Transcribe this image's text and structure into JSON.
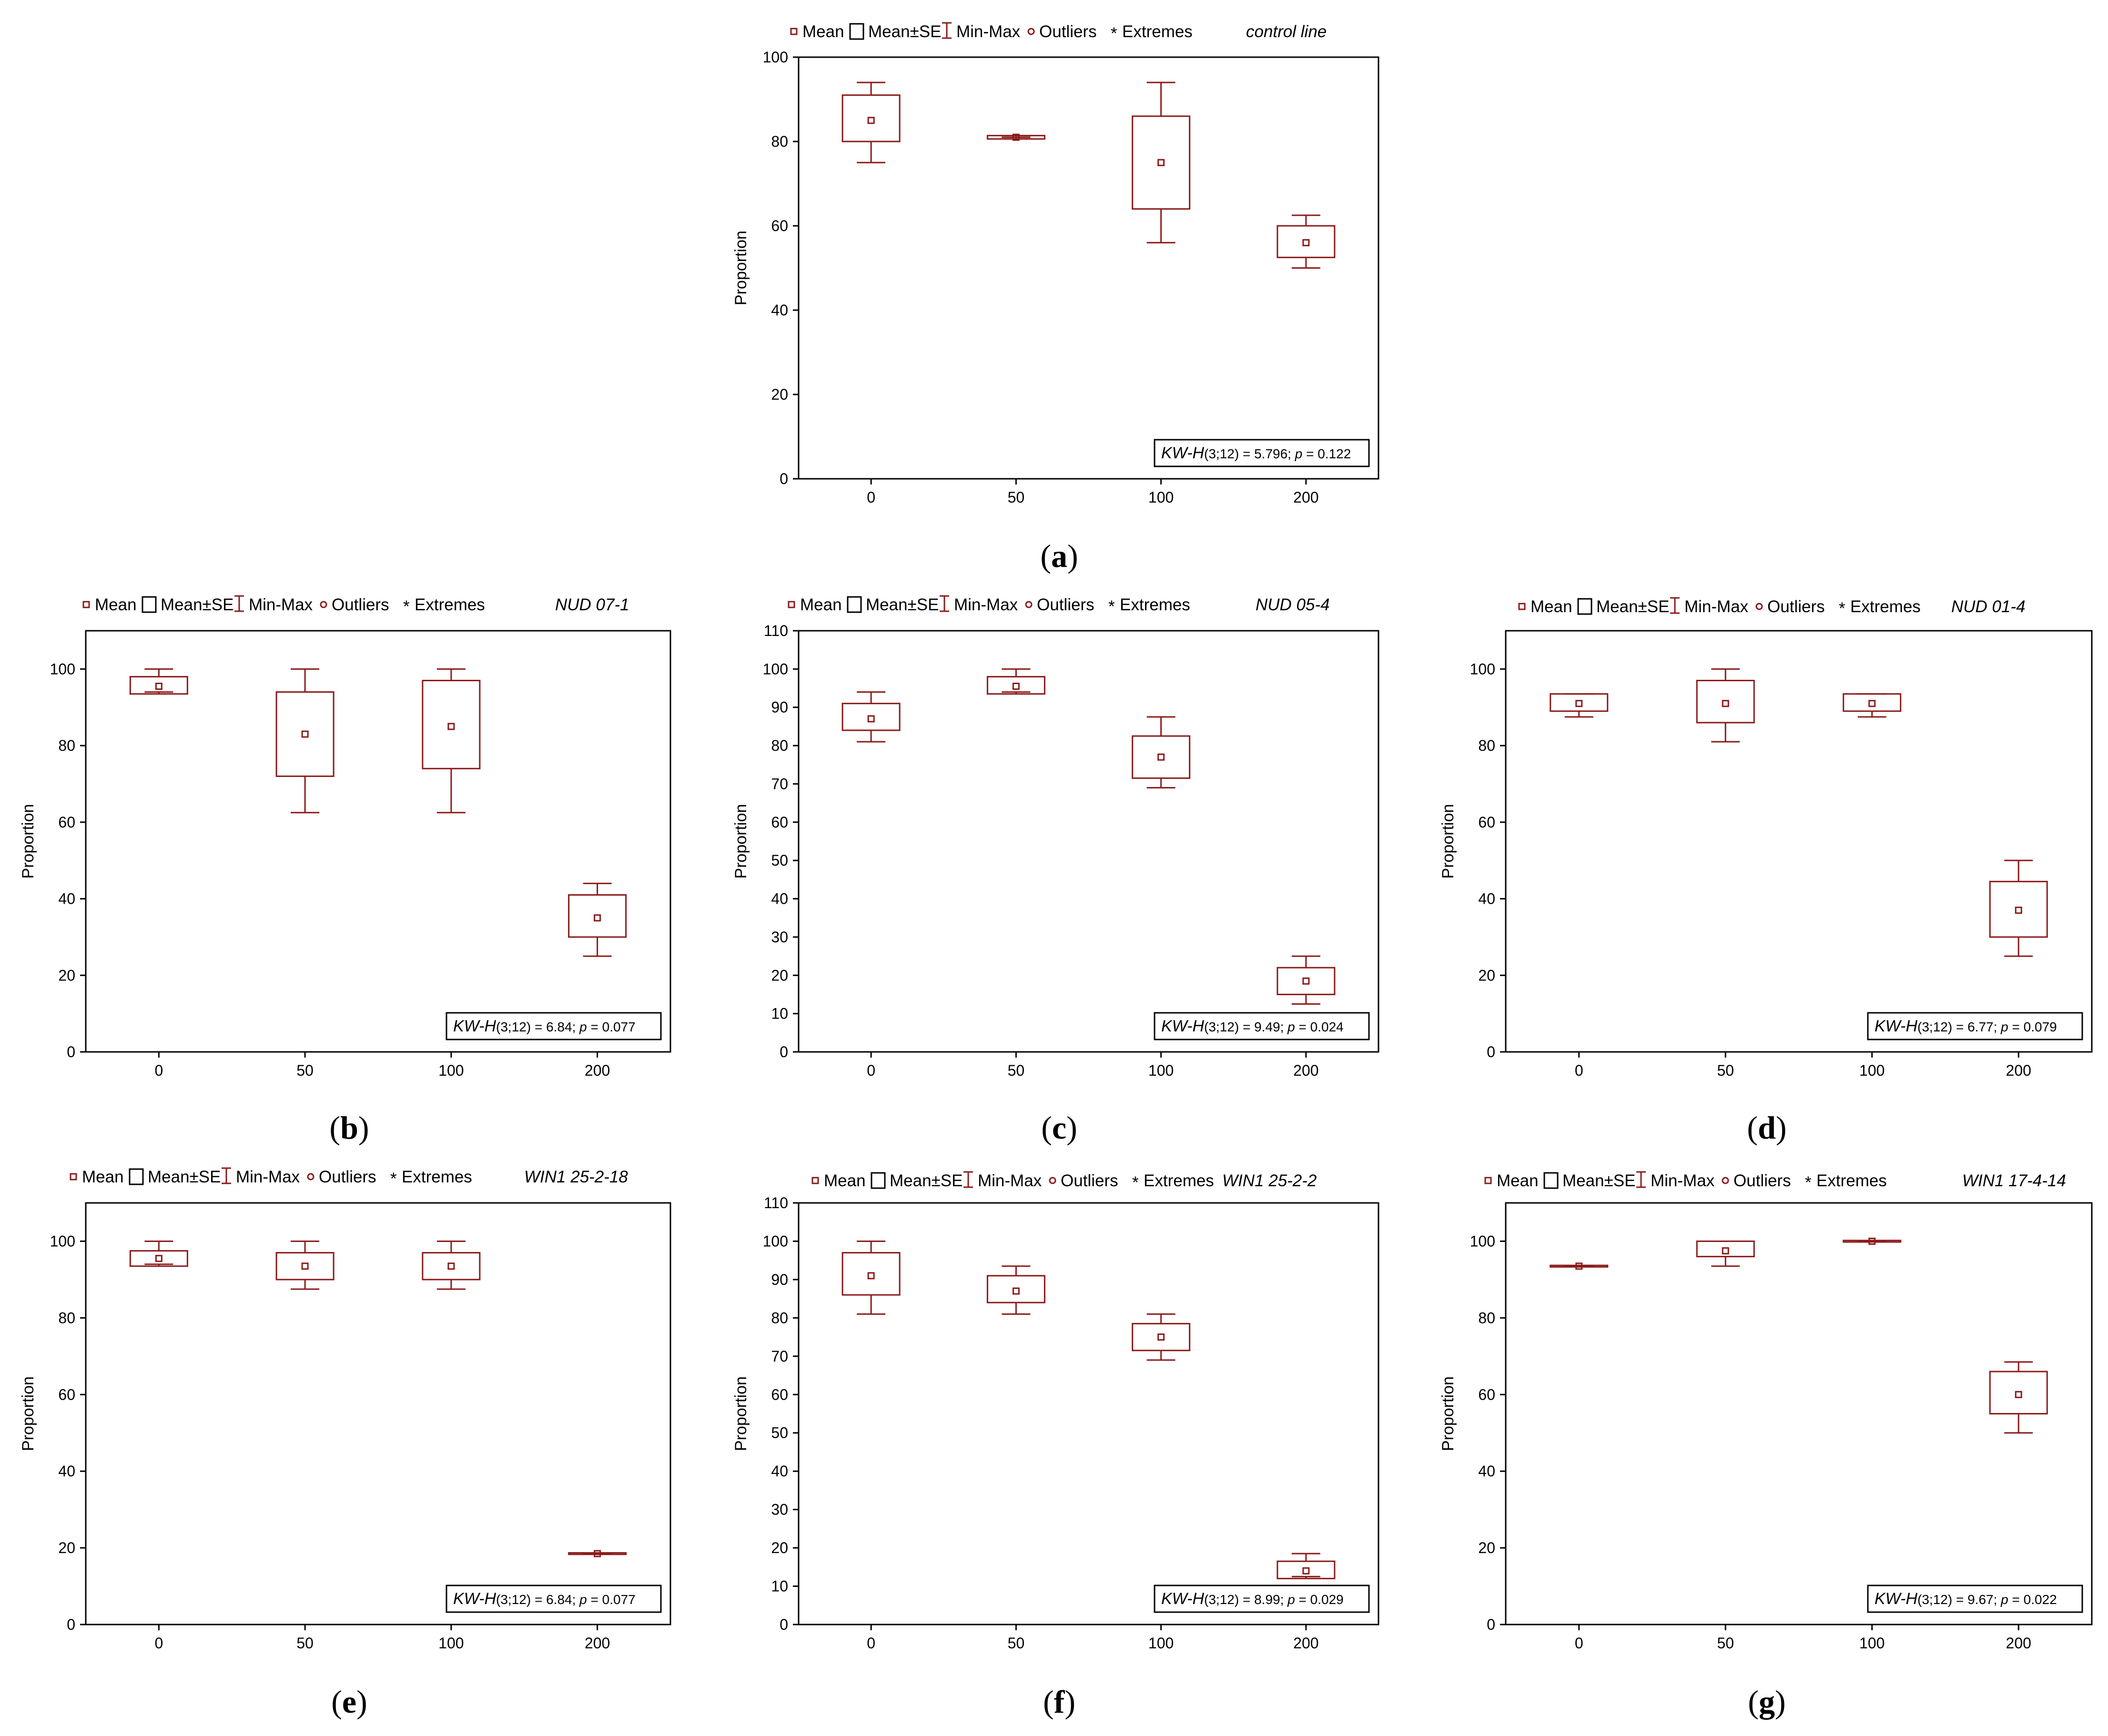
{
  "legend": {
    "mean": "Mean",
    "mean_se": "Mean±SE",
    "min_max": "Min-Max",
    "outliers": "Outliers",
    "extremes": "Extremes"
  },
  "colors": {
    "accent": "#8b1a1a",
    "axis": "#000000"
  },
  "chart_data": [
    {
      "type": "box",
      "id": "a",
      "panel_label": "a",
      "title": "control line",
      "ylabel": "Proportion",
      "categories": [
        "0",
        "50",
        "100",
        "200"
      ],
      "ylim": [
        0,
        100
      ],
      "yticks": [
        0,
        20,
        40,
        60,
        80,
        100
      ],
      "mean": [
        85,
        81,
        75,
        56
      ],
      "se_low": [
        80,
        80.6,
        64,
        52.5
      ],
      "se_high": [
        91,
        81.4,
        86,
        60
      ],
      "min": [
        75,
        81,
        56,
        50
      ],
      "max": [
        94,
        81,
        94,
        62.5
      ],
      "stat": {
        "name": "KW-H",
        "df": "(3;12)",
        "value": "= 5.796;",
        "p": "= 0.122"
      }
    },
    {
      "type": "box",
      "id": "b",
      "panel_label": "b",
      "title": "NUD 07-1",
      "ylabel": "Proportion",
      "categories": [
        "0",
        "50",
        "100",
        "200"
      ],
      "ylim": [
        0,
        110
      ],
      "yticks": [
        0,
        20,
        40,
        60,
        80,
        100
      ],
      "mean": [
        95.5,
        83,
        85,
        35
      ],
      "se_low": [
        93.5,
        72,
        74,
        30
      ],
      "se_high": [
        98,
        94,
        97,
        41
      ],
      "min": [
        94,
        62.5,
        62.5,
        25
      ],
      "max": [
        100,
        100,
        100,
        44
      ],
      "stat": {
        "name": "KW-H",
        "df": "(3;12)",
        "value": "= 6.84;",
        "p": "= 0.077"
      }
    },
    {
      "type": "box",
      "id": "c",
      "panel_label": "c",
      "title": "NUD 05-4",
      "ylabel": "Proportion",
      "categories": [
        "0",
        "50",
        "100",
        "200"
      ],
      "ylim": [
        0,
        110
      ],
      "yticks": [
        0,
        10,
        20,
        30,
        40,
        50,
        60,
        70,
        80,
        90,
        100,
        110
      ],
      "mean": [
        87,
        95.5,
        77,
        18.5
      ],
      "se_low": [
        84,
        93.5,
        71.5,
        15
      ],
      "se_high": [
        91,
        98,
        82.5,
        22
      ],
      "min": [
        81,
        94,
        69,
        12.5
      ],
      "max": [
        94,
        100,
        87.5,
        25
      ],
      "stat": {
        "name": "KW-H",
        "df": "(3;12)",
        "value": "= 9.49;",
        "p": "= 0.024"
      }
    },
    {
      "type": "box",
      "id": "d",
      "panel_label": "d",
      "title": "NUD 01-4",
      "ylabel": "Proportion",
      "categories": [
        "0",
        "50",
        "100",
        "200"
      ],
      "ylim": [
        0,
        110
      ],
      "yticks": [
        0,
        20,
        40,
        60,
        80,
        100
      ],
      "mean": [
        91,
        91,
        91,
        37
      ],
      "se_low": [
        89,
        86,
        89,
        30
      ],
      "se_high": [
        93.5,
        97,
        93.5,
        44.5
      ],
      "min": [
        87.5,
        81,
        87.5,
        25
      ],
      "max": [
        93.5,
        100,
        93.5,
        50
      ],
      "stat": {
        "name": "KW-H",
        "df": "(3;12)",
        "value": "= 6.77;",
        "p": "= 0.079"
      }
    },
    {
      "type": "box",
      "id": "e",
      "panel_label": "e",
      "title": "WIN1 25-2-18",
      "ylabel": "Proportion",
      "categories": [
        "0",
        "50",
        "100",
        "200"
      ],
      "ylim": [
        0,
        110
      ],
      "yticks": [
        0,
        20,
        40,
        60,
        80,
        100
      ],
      "mean": [
        95.5,
        93.5,
        93.5,
        18.5
      ],
      "se_low": [
        93.5,
        90,
        90,
        18.3
      ],
      "se_high": [
        97.5,
        97,
        97,
        18.7
      ],
      "min": [
        94,
        87.5,
        87.5,
        18.5
      ],
      "max": [
        100,
        100,
        100,
        18.5
      ],
      "stat": {
        "name": "KW-H",
        "df": "(3;12)",
        "value": "= 6.84;",
        "p": "= 0.077"
      }
    },
    {
      "type": "box",
      "id": "f",
      "panel_label": "f",
      "title": "WIN1 25-2-2",
      "ylabel": "Proportion",
      "categories": [
        "0",
        "50",
        "100",
        "200"
      ],
      "ylim": [
        0,
        110
      ],
      "yticks": [
        0,
        10,
        20,
        30,
        40,
        50,
        60,
        70,
        80,
        90,
        100,
        110
      ],
      "mean": [
        91,
        87,
        75,
        14
      ],
      "se_low": [
        86,
        84,
        71.5,
        12
      ],
      "se_high": [
        97,
        91,
        78.5,
        16.5
      ],
      "min": [
        81,
        81,
        69,
        12.5
      ],
      "max": [
        100,
        93.5,
        81,
        18.5
      ],
      "stat": {
        "name": "KW-H",
        "df": "(3;12)",
        "value": "= 8.99;",
        "p": "= 0.029"
      }
    },
    {
      "type": "box",
      "id": "g",
      "panel_label": "g",
      "title": "WIN1 17-4-14",
      "ylabel": "Proportion",
      "categories": [
        "0",
        "50",
        "100",
        "200"
      ],
      "ylim": [
        0,
        110
      ],
      "yticks": [
        0,
        20,
        40,
        60,
        80,
        100
      ],
      "mean": [
        93.5,
        97.5,
        100,
        60
      ],
      "se_low": [
        93.3,
        96,
        99.8,
        55
      ],
      "se_high": [
        93.7,
        100,
        100.2,
        66
      ],
      "min": [
        93.5,
        93.5,
        100,
        50
      ],
      "max": [
        93.5,
        100,
        100,
        68.5
      ],
      "stat": {
        "name": "KW-H",
        "df": "(3;12)",
        "value": "= 9.67;",
        "p": "= 0.022"
      }
    }
  ]
}
